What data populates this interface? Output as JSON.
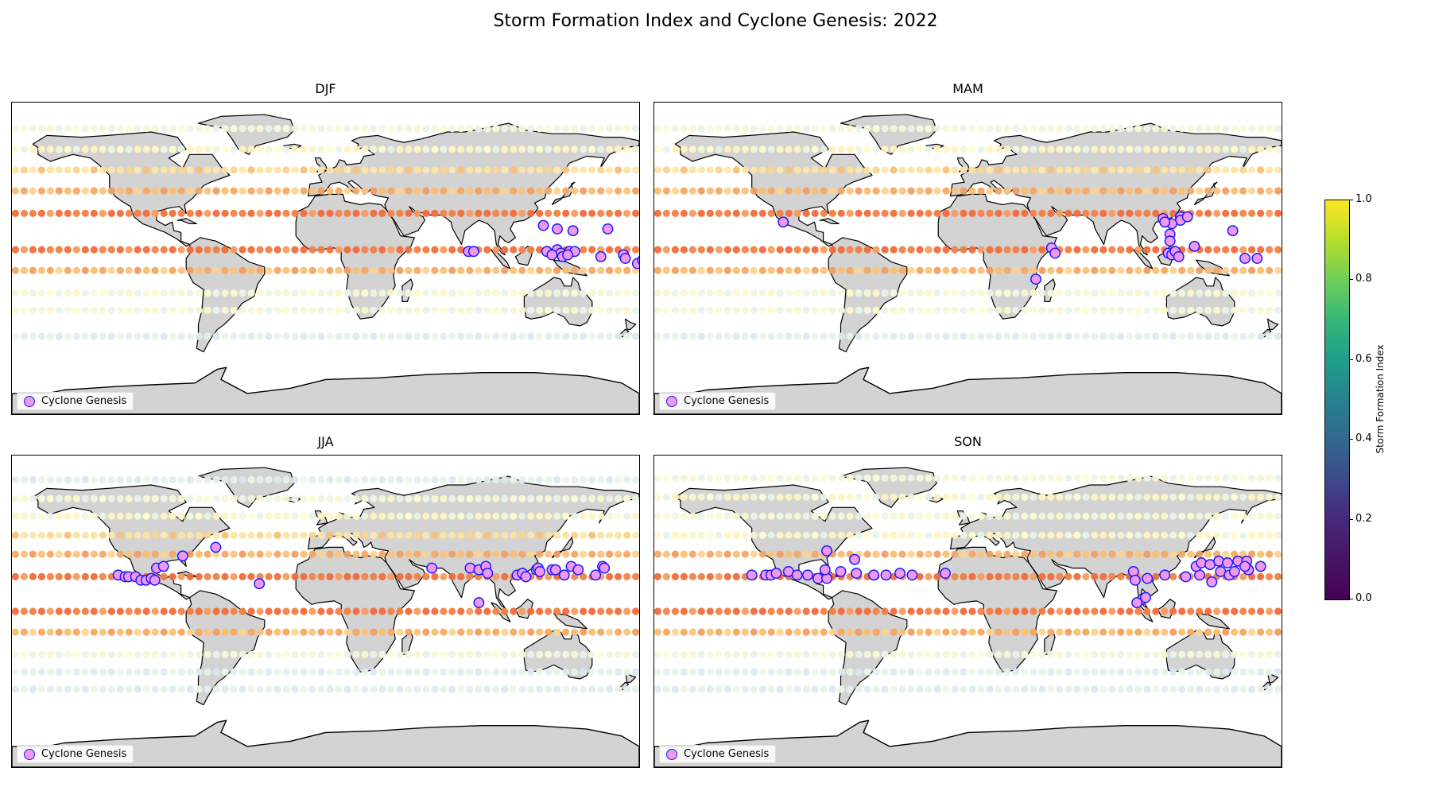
{
  "title": "Storm Formation Index and Cyclone Genesis: 2022",
  "legend_label": "Cyclone Genesis",
  "colorbar": {
    "label": "Storm Formation Index",
    "ticks": [
      "1.0",
      "0.8",
      "0.6",
      "0.4",
      "0.2",
      "0.0"
    ],
    "colormap": "viridis",
    "range": [
      0.0,
      1.0
    ]
  },
  "colors": {
    "land": "#d3d3d3",
    "ocean": "#ffffff",
    "coast": "#000000",
    "genesis_fill": "#ee99ee",
    "genesis_edge": "#1a1aff"
  },
  "panels": [
    {
      "season": "DJF",
      "index_rows": [
        {
          "lat": 75,
          "tone": "pale"
        },
        {
          "lat": 63,
          "tone": "light"
        },
        {
          "lat": 51,
          "tone": "mid"
        },
        {
          "lat": 39,
          "tone": "warm"
        },
        {
          "lat": 26,
          "tone": "hot"
        },
        {
          "lat": 5,
          "tone": "hot"
        },
        {
          "lat": -7,
          "tone": "warm"
        },
        {
          "lat": -20,
          "tone": "pale"
        },
        {
          "lat": -30,
          "tone": "pale"
        },
        {
          "lat": -45,
          "tone": "cool"
        }
      ],
      "genesis": [
        [
          125,
          19
        ],
        [
          133,
          17
        ],
        [
          142,
          16
        ],
        [
          162,
          17
        ],
        [
          82,
          4
        ],
        [
          85,
          4
        ],
        [
          127,
          4
        ],
        [
          133,
          5
        ],
        [
          135,
          3
        ],
        [
          140,
          4
        ],
        [
          143,
          4
        ],
        [
          130,
          2
        ],
        [
          136,
          1
        ],
        [
          139,
          2
        ],
        [
          158,
          1
        ],
        [
          171,
          2
        ],
        [
          172,
          0
        ],
        [
          179,
          -3
        ],
        [
          182,
          -1
        ]
      ]
    },
    {
      "season": "MAM",
      "index_rows": [
        {
          "lat": 75,
          "tone": "pale"
        },
        {
          "lat": 63,
          "tone": "light"
        },
        {
          "lat": 51,
          "tone": "mid"
        },
        {
          "lat": 39,
          "tone": "warm"
        },
        {
          "lat": 26,
          "tone": "hot"
        },
        {
          "lat": 5,
          "tone": "hot"
        },
        {
          "lat": -7,
          "tone": "warm"
        },
        {
          "lat": -20,
          "tone": "pale"
        },
        {
          "lat": -30,
          "tone": "pale"
        },
        {
          "lat": -45,
          "tone": "cool"
        }
      ],
      "genesis": [
        [
          -106,
          21
        ],
        [
          122,
          24
        ],
        [
          122,
          22
        ],
        [
          112,
          23
        ],
        [
          117,
          20
        ],
        [
          113,
          21
        ],
        [
          126,
          24
        ],
        [
          116,
          14
        ],
        [
          116,
          10
        ],
        [
          48,
          6
        ],
        [
          50,
          3
        ],
        [
          130,
          7
        ],
        [
          152,
          16
        ],
        [
          159,
          0
        ],
        [
          166,
          0
        ],
        [
          39,
          -12
        ],
        [
          115,
          3
        ],
        [
          117,
          2
        ],
        [
          119,
          4
        ],
        [
          121,
          1
        ]
      ]
    },
    {
      "season": "JJA",
      "index_rows": [
        {
          "lat": 76,
          "tone": "cool"
        },
        {
          "lat": 65,
          "tone": "pale"
        },
        {
          "lat": 55,
          "tone": "light"
        },
        {
          "lat": 44,
          "tone": "mid"
        },
        {
          "lat": 33,
          "tone": "warm"
        },
        {
          "lat": 20,
          "tone": "hot"
        },
        {
          "lat": 0,
          "tone": "hot"
        },
        {
          "lat": -12,
          "tone": "warm"
        },
        {
          "lat": -25,
          "tone": "pale"
        },
        {
          "lat": -35,
          "tone": "cool"
        },
        {
          "lat": -45,
          "tone": "cool"
        }
      ],
      "genesis": [
        [
          -119,
          21
        ],
        [
          -115,
          20
        ],
        [
          -113,
          20
        ],
        [
          -109,
          20
        ],
        [
          -106,
          18
        ],
        [
          -103,
          18
        ],
        [
          -97,
          25
        ],
        [
          -93,
          26
        ],
        [
          -82,
          32
        ],
        [
          -63,
          37
        ],
        [
          -38,
          16
        ],
        [
          -100,
          19
        ],
        [
          -98,
          18
        ],
        [
          61,
          25
        ],
        [
          83,
          25
        ],
        [
          88,
          24
        ],
        [
          92,
          26
        ],
        [
          93,
          22
        ],
        [
          110,
          21
        ],
        [
          113,
          22
        ],
        [
          115,
          20
        ],
        [
          121,
          24
        ],
        [
          122,
          25
        ],
        [
          123,
          23
        ],
        [
          130,
          24
        ],
        [
          132,
          24
        ],
        [
          137,
          21
        ],
        [
          141,
          26
        ],
        [
          145,
          24
        ],
        [
          155,
          21
        ],
        [
          159,
          26
        ],
        [
          160,
          25
        ],
        [
          88,
          5
        ]
      ]
    },
    {
      "season": "SON",
      "index_rows": [
        {
          "lat": 77,
          "tone": "pale"
        },
        {
          "lat": 66,
          "tone": "light"
        },
        {
          "lat": 55,
          "tone": "pale"
        },
        {
          "lat": 44,
          "tone": "light"
        },
        {
          "lat": 33,
          "tone": "warm"
        },
        {
          "lat": 20,
          "tone": "hot"
        },
        {
          "lat": 0,
          "tone": "hot"
        },
        {
          "lat": -12,
          "tone": "warm"
        },
        {
          "lat": -25,
          "tone": "pale"
        },
        {
          "lat": -35,
          "tone": "cool"
        },
        {
          "lat": -45,
          "tone": "cool"
        }
      ],
      "genesis": [
        [
          -124,
          21
        ],
        [
          -116,
          21
        ],
        [
          -113,
          21
        ],
        [
          -110,
          22
        ],
        [
          -103,
          23
        ],
        [
          -98,
          21
        ],
        [
          -92,
          21
        ],
        [
          -86,
          19
        ],
        [
          -81,
          19
        ],
        [
          -82,
          24
        ],
        [
          -73,
          23
        ],
        [
          -64,
          22
        ],
        [
          -54,
          21
        ],
        [
          -47,
          21
        ],
        [
          -39,
          22
        ],
        [
          -32,
          21
        ],
        [
          -13,
          22
        ],
        [
          -81,
          35
        ],
        [
          -65,
          30
        ],
        [
          95,
          23
        ],
        [
          103,
          19
        ],
        [
          113,
          21
        ],
        [
          125,
          20
        ],
        [
          133,
          21
        ],
        [
          145,
          23
        ],
        [
          150,
          21
        ],
        [
          153,
          23
        ],
        [
          161,
          24
        ],
        [
          131,
          26
        ],
        [
          134,
          28
        ],
        [
          139,
          27
        ],
        [
          144,
          29
        ],
        [
          149,
          28
        ],
        [
          155,
          29
        ],
        [
          160,
          29
        ],
        [
          168,
          26
        ],
        [
          159,
          26
        ],
        [
          140,
          17
        ],
        [
          100,
          7
        ],
        [
          97,
          5
        ],
        [
          102,
          8
        ],
        [
          96,
          18
        ]
      ]
    }
  ]
}
